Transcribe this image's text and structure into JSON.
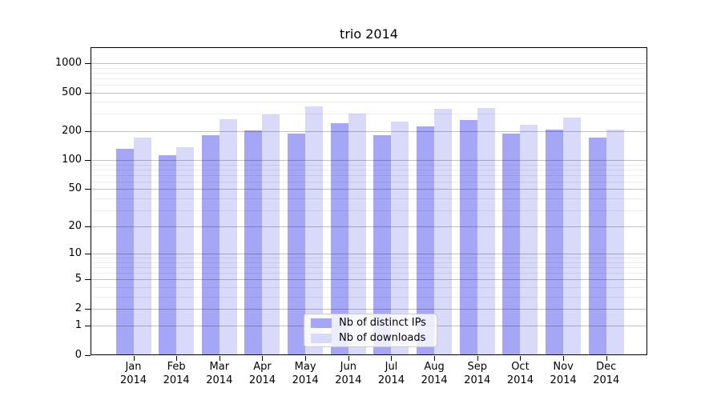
{
  "figure": {
    "background": "#ffffff",
    "text_color": "#000000"
  },
  "chart_data": {
    "type": "bar",
    "title": "trio 2014",
    "xlabel": "",
    "ylabel": "",
    "year": "2014",
    "categories": [
      "Jan",
      "Feb",
      "Mar",
      "Apr",
      "May",
      "Jun",
      "Jul",
      "Aug",
      "Sep",
      "Oct",
      "Nov",
      "Dec"
    ],
    "series": [
      {
        "name": "Nb of distinct IPs",
        "color": "#a6a6f6",
        "values": [
          131,
          113,
          180,
          202,
          189,
          243,
          182,
          225,
          260,
          187,
          208,
          171
        ]
      },
      {
        "name": "Nb of downloads",
        "color": "#d9d9f9",
        "values": [
          170,
          135,
          265,
          295,
          360,
          303,
          249,
          339,
          345,
          232,
          277,
          207
        ]
      }
    ],
    "yscale": "log10(value+1)",
    "y_major_ticks": [
      0,
      1,
      2,
      5,
      10,
      20,
      50,
      100,
      200,
      500,
      1000
    ],
    "y_minor_ticks": [
      3,
      4,
      6,
      7,
      8,
      9,
      30,
      40,
      60,
      70,
      80,
      90,
      300,
      400,
      600,
      700,
      800,
      900
    ],
    "ylim": [
      0,
      1500
    ],
    "grid": "on",
    "legend_position": "lower-center"
  }
}
